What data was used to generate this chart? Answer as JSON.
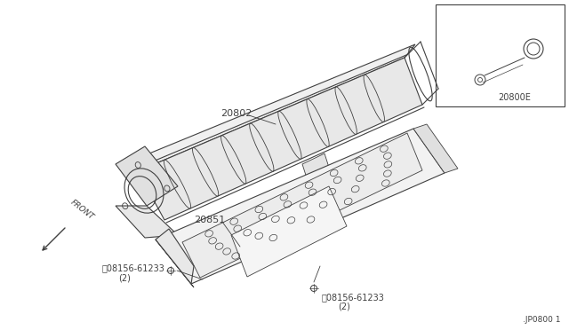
{
  "bg_color": "#ffffff",
  "line_color": "#404040",
  "title_bottom": ".JP0800 1",
  "inset_label": "20800E",
  "front_text": "FRONT",
  "label_20802": "20802",
  "label_20851": "20851",
  "bolt_label": "08156-61233",
  "bolt_qty": "(2)",
  "font_size": 8,
  "small_font": 7,
  "fig_w": 6.4,
  "fig_h": 3.72,
  "dpi": 100
}
